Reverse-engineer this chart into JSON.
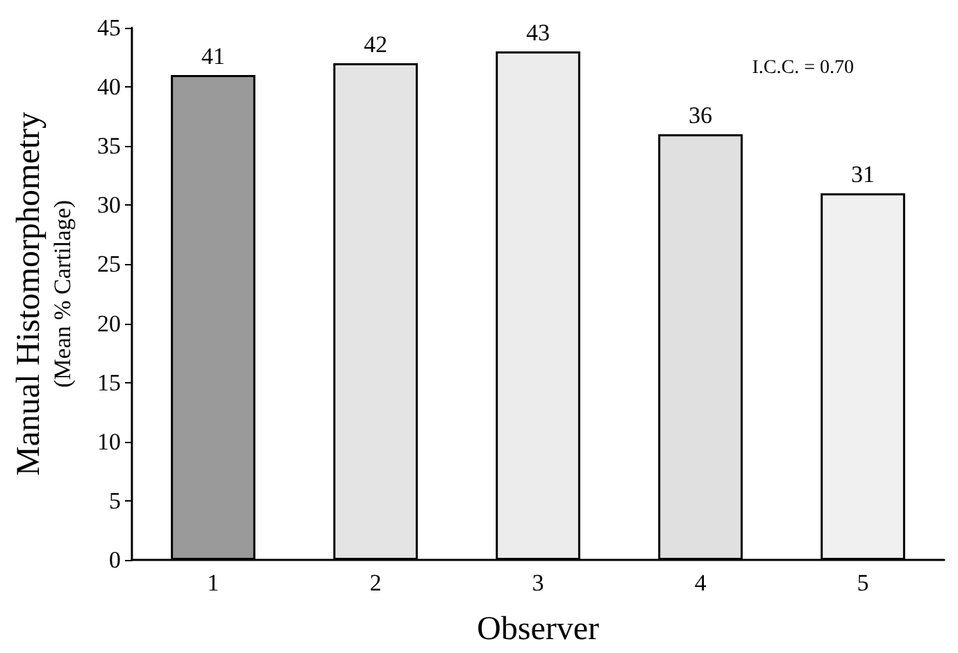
{
  "chart_data": {
    "type": "bar",
    "xlabel": "Observer",
    "ylabel": "Manual Histomorphometry\n(Mean % Cartilage)",
    "categories": [
      "1",
      "2",
      "3",
      "4",
      "5"
    ],
    "values": [
      41,
      42,
      43,
      36,
      31
    ],
    "colors": [
      "#9a9a9a",
      "#e4e4e4",
      "#ececec",
      "#e0e0e0",
      "#f0f0f0"
    ],
    "ylim": [
      0,
      45
    ],
    "yticks": [
      0,
      5,
      10,
      15,
      20,
      25,
      30,
      35,
      40,
      45
    ],
    "data_labels": true,
    "grid": false,
    "annotations": [
      "I.C.C. = 0.70"
    ]
  }
}
